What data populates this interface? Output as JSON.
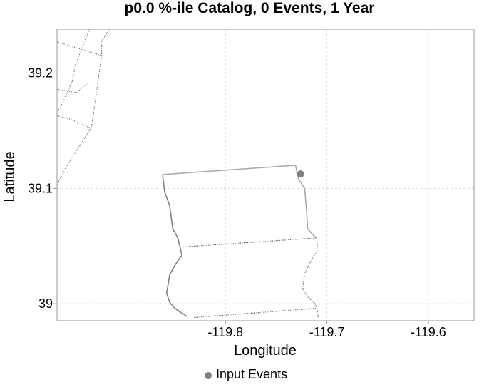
{
  "chart_data": {
    "type": "scatter",
    "title": "p0.0 %-ile Catalog, 0 Events, 1 Year",
    "xlabel": "Longitude",
    "ylabel": "Latitude",
    "xlim": [
      -119.966,
      -119.555
    ],
    "ylim": [
      38.9852,
      39.2381
    ],
    "xticks": [
      -119.8,
      -119.7,
      -119.6
    ],
    "xtick_labels": [
      "-119.8",
      "-119.7",
      "-119.6"
    ],
    "yticks": [
      39.0,
      39.1,
      39.2
    ],
    "ytick_labels": [
      "39",
      "39.1",
      "39.2"
    ],
    "grid": true,
    "legend_position": "bottom-center",
    "series": [
      {
        "name": "Input Events",
        "color": "#808080",
        "points": [
          {
            "lon": -119.726,
            "lat": 39.1125
          }
        ]
      }
    ],
    "boundaries": [
      {
        "style": "solid",
        "color": "#aaaaaa",
        "points": [
          [
            -119.862,
            39.112
          ],
          [
            -119.731,
            39.12
          ]
        ]
      },
      {
        "style": "solid",
        "color": "#aaaaaa",
        "points": [
          [
            -119.731,
            39.12
          ],
          [
            -119.728,
            39.108
          ],
          [
            -119.722,
            39.1
          ],
          [
            -119.72,
            39.08
          ],
          [
            -119.719,
            39.065
          ],
          [
            -119.713,
            39.059
          ],
          [
            -119.71,
            39.057
          ]
        ]
      },
      {
        "style": "dotted",
        "color": "#555555",
        "points": [
          [
            -119.845,
            39.049
          ],
          [
            -119.71,
            39.057
          ]
        ]
      },
      {
        "style": "dotted",
        "color": "#666666",
        "points": [
          [
            -119.71,
            39.057
          ],
          [
            -119.709,
            39.047
          ],
          [
            -119.717,
            39.035
          ],
          [
            -119.722,
            39.026
          ],
          [
            -119.724,
            39.013
          ],
          [
            -119.719,
            39.006
          ],
          [
            -119.712,
            39.0
          ],
          [
            -119.71,
            38.996
          ],
          [
            -119.708,
            38.986
          ]
        ]
      },
      {
        "style": "dotted",
        "color": "#555555",
        "points": [
          [
            -119.831,
            38.988
          ],
          [
            -119.71,
            38.996
          ]
        ]
      },
      {
        "style": "solid",
        "color": "#808080",
        "points": [
          [
            -119.862,
            39.112
          ],
          [
            -119.86,
            39.097
          ],
          [
            -119.855,
            39.085
          ],
          [
            -119.852,
            39.065
          ],
          [
            -119.847,
            39.057
          ],
          [
            -119.845,
            39.05
          ],
          [
            -119.843,
            39.042
          ],
          [
            -119.847,
            39.037
          ],
          [
            -119.85,
            39.033
          ],
          [
            -119.855,
            39.025
          ],
          [
            -119.858,
            39.009
          ],
          [
            -119.855,
            39.001
          ],
          [
            -119.85,
            38.996
          ],
          [
            -119.845,
            38.993
          ],
          [
            -119.838,
            38.989
          ]
        ]
      },
      {
        "style": "dotted",
        "color": "#666666",
        "points": [
          [
            -119.966,
            39.227
          ],
          [
            -119.921,
            39.215
          ]
        ]
      },
      {
        "style": "dotted",
        "color": "#666666",
        "points": [
          [
            -119.966,
            39.186
          ],
          [
            -119.947,
            39.183
          ],
          [
            -119.935,
            39.192
          ]
        ]
      },
      {
        "style": "dotted",
        "color": "#666666",
        "points": [
          [
            -119.966,
            39.163
          ],
          [
            -119.953,
            39.16
          ],
          [
            -119.932,
            39.152
          ]
        ]
      },
      {
        "style": "dotted",
        "color": "#666666",
        "points": [
          [
            -119.934,
            39.238
          ],
          [
            -119.948,
            39.207
          ],
          [
            -119.951,
            39.193
          ],
          [
            -119.955,
            39.185
          ],
          [
            -119.963,
            39.17
          ],
          [
            -119.966,
            39.166
          ]
        ]
      },
      {
        "style": "dotted",
        "color": "#666666",
        "points": [
          [
            -119.914,
            39.238
          ],
          [
            -119.922,
            39.228
          ],
          [
            -119.922,
            39.216
          ],
          [
            -119.926,
            39.19
          ],
          [
            -119.932,
            39.153
          ],
          [
            -119.945,
            39.135
          ],
          [
            -119.958,
            39.117
          ],
          [
            -119.966,
            39.103
          ]
        ]
      }
    ]
  }
}
